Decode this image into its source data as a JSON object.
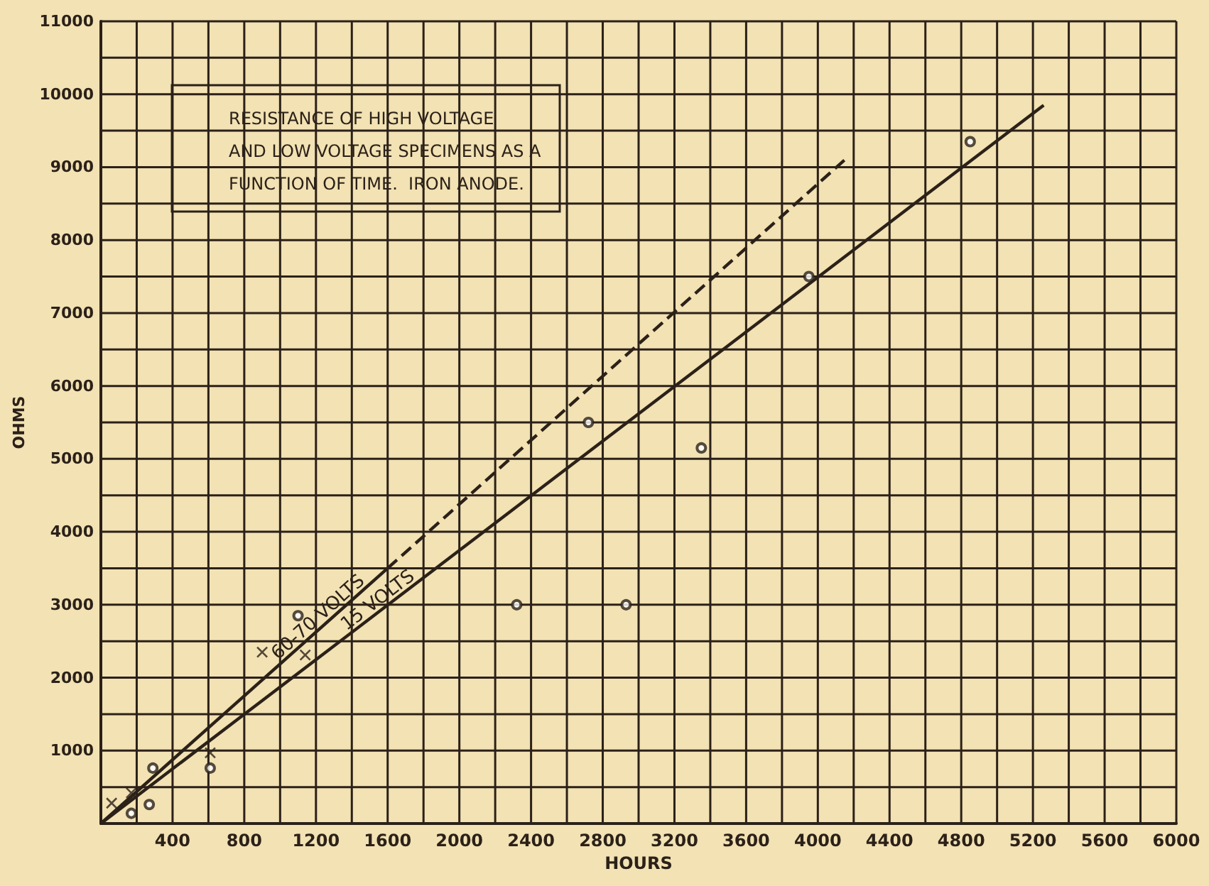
{
  "chart_data": {
    "type": "scatter",
    "title": "RESISTANCE OF HIGH VOLTAGE\nAND LOW VOLTAGE SPECIMENS AS A\nFUNCTION OF TIME.  IRON ANODE.",
    "xlabel": "HOURS",
    "ylabel": "OHMS",
    "xlim": [
      0,
      6000
    ],
    "ylim": [
      0,
      11000
    ],
    "xticks": [
      {
        "value": 0,
        "label": null
      },
      {
        "value": 200,
        "label": null
      },
      400,
      {
        "value": 600,
        "label": null
      },
      800,
      {
        "value": 1000,
        "label": null
      },
      1200,
      {
        "value": 1400,
        "label": null
      },
      1600,
      {
        "value": 1800,
        "label": null
      },
      2000,
      {
        "value": 2200,
        "label": null
      },
      2400,
      {
        "value": 2600,
        "label": null
      },
      2800,
      {
        "value": 3000,
        "label": null
      },
      3200,
      {
        "value": 3400,
        "label": null
      },
      3600,
      {
        "value": 3800,
        "label": null
      },
      4000,
      {
        "value": 4200,
        "label": null
      },
      4400,
      {
        "value": 4600,
        "label": null
      },
      4800,
      {
        "value": 5000,
        "label": null
      },
      5200,
      {
        "value": 5400,
        "label": null
      },
      5600,
      {
        "value": 5800,
        "label": null
      },
      6000
    ],
    "yticks": [
      {
        "value": 0,
        "label": null
      },
      {
        "value": 500,
        "label": null
      },
      1000,
      {
        "value": 1500,
        "label": null
      },
      2000,
      {
        "value": 2500,
        "label": null
      },
      3000,
      {
        "value": 3500,
        "label": null
      },
      4000,
      {
        "value": 4500,
        "label": null
      },
      5000,
      {
        "value": 5500,
        "label": null
      },
      6000,
      {
        "value": 6500,
        "label": null
      },
      7000,
      {
        "value": 7500,
        "label": null
      },
      8000,
      {
        "value": 8500,
        "label": null
      },
      9000,
      {
        "value": 9500,
        "label": null
      },
      10000,
      {
        "value": 10500,
        "label": null
      },
      11000
    ],
    "grid": true,
    "legend": false,
    "series": [
      {
        "marker": "cross",
        "color": "#2b2118",
        "x": [
          60,
          170,
          610,
          900,
          1140
        ],
        "values": [
          280,
          420,
          970,
          2350,
          2310
        ]
      },
      {
        "marker": "circle",
        "color": "#2b2118",
        "x": [
          170,
          270,
          290,
          610,
          1100,
          2320,
          2930,
          2720,
          3350,
          3950,
          4850
        ],
        "values": [
          140,
          260,
          760,
          760,
          2850,
          3000,
          3000,
          5500,
          5150,
          7500,
          9350
        ]
      },
      {
        "type": "line",
        "name": "60-70 VOLTS",
        "line_style": "solid",
        "marker": "none",
        "color": "#2b2118",
        "x": [
          0,
          1600
        ],
        "values": [
          0,
          3500
        ]
      },
      {
        "type": "line",
        "line_style": "dashed",
        "marker": "none",
        "color": "#2b2118",
        "x": [
          1600,
          4150
        ],
        "values": [
          3500,
          9100
        ]
      },
      {
        "type": "line",
        "name": "15 VOLTS",
        "line_style": "solid",
        "marker": "none",
        "color": "#2b2118",
        "x": [
          0,
          5260
        ],
        "values": [
          0,
          9850
        ]
      }
    ]
  }
}
